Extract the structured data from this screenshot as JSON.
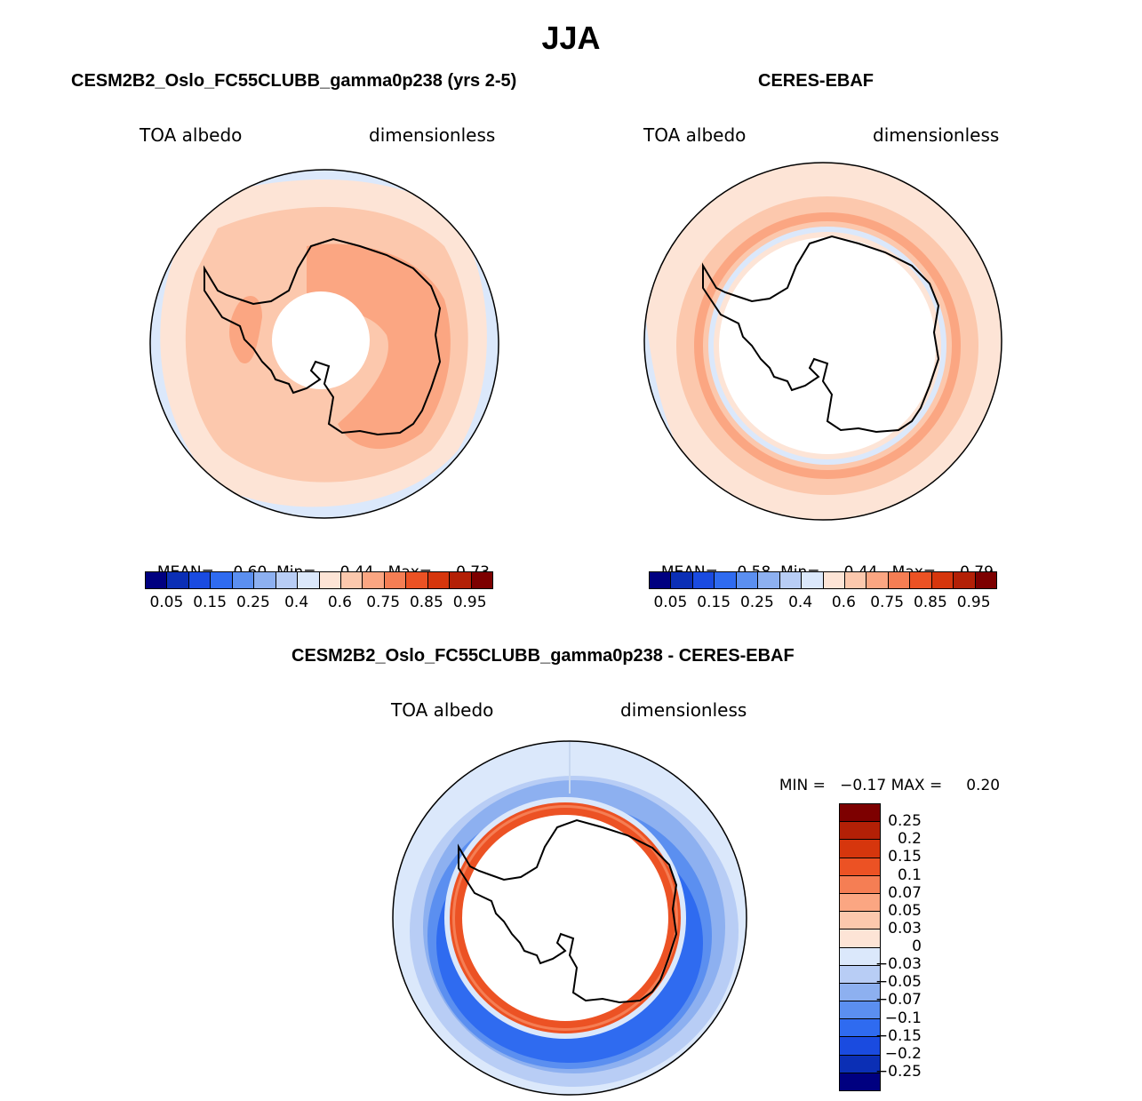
{
  "figure": {
    "title": "JJA"
  },
  "panel_model": {
    "title": "CESM2B2_Oslo_FC55CLUBB_gamma0p238 (yrs 2-5)",
    "left_label": "TOA albedo",
    "right_label": "dimensionless",
    "mean_label": "MEAN=",
    "mean_value": "0.60",
    "min_label": "Min=",
    "min_value": "0.44",
    "max_label": "Max=",
    "max_value": "0.73",
    "colorbar_ticks": [
      "0.05",
      "0.15",
      "0.25",
      "0.4",
      "0.6",
      "0.75",
      "0.85",
      "0.95"
    ]
  },
  "panel_obs": {
    "title": "CERES-EBAF",
    "left_label": "TOA albedo",
    "right_label": "dimensionless",
    "mean_label": "MEAN=",
    "mean_value": "0.58",
    "min_label": "Min=",
    "min_value": "0.44",
    "max_label": "Max=",
    "max_value": "0.79",
    "colorbar_ticks": [
      "0.05",
      "0.15",
      "0.25",
      "0.4",
      "0.6",
      "0.75",
      "0.85",
      "0.95"
    ]
  },
  "panel_diff": {
    "title": "CESM2B2_Oslo_FC55CLUBB_gamma0p238 - CERES-EBAF",
    "left_label": "TOA albedo",
    "right_label": "dimensionless",
    "min_label": "MIN =",
    "min_value": "−0.17",
    "max_label": "MAX =",
    "max_value": "0.20",
    "colorbar_ticks": [
      "0.25",
      "0.2",
      "0.15",
      "0.1",
      "0.07",
      "0.05",
      "0.03",
      "0",
      "−0.03",
      "−0.05",
      "−0.07",
      "−0.1",
      "−0.15",
      "−0.2",
      "−0.25"
    ]
  },
  "colors": {
    "abs_scale": [
      "#000080",
      "#0b2fb5",
      "#1a4be0",
      "#2f6bf0",
      "#5b8ff0",
      "#8db0f0",
      "#b8cdf5",
      "#dbe8fb",
      "#fde4d6",
      "#fcc8ad",
      "#fba682",
      "#f57e54",
      "#ec5224",
      "#d6360d",
      "#b32006",
      "#7d0000"
    ],
    "diff_scale": [
      "#7d0000",
      "#b32006",
      "#d6360d",
      "#ec5224",
      "#f57e54",
      "#fba682",
      "#fcc8ad",
      "#fde4d6",
      "#dbe8fb",
      "#b8cdf5",
      "#8db0f0",
      "#5b8ff0",
      "#2f6bf0",
      "#1a4be0",
      "#0b2fb5",
      "#000080"
    ]
  }
}
